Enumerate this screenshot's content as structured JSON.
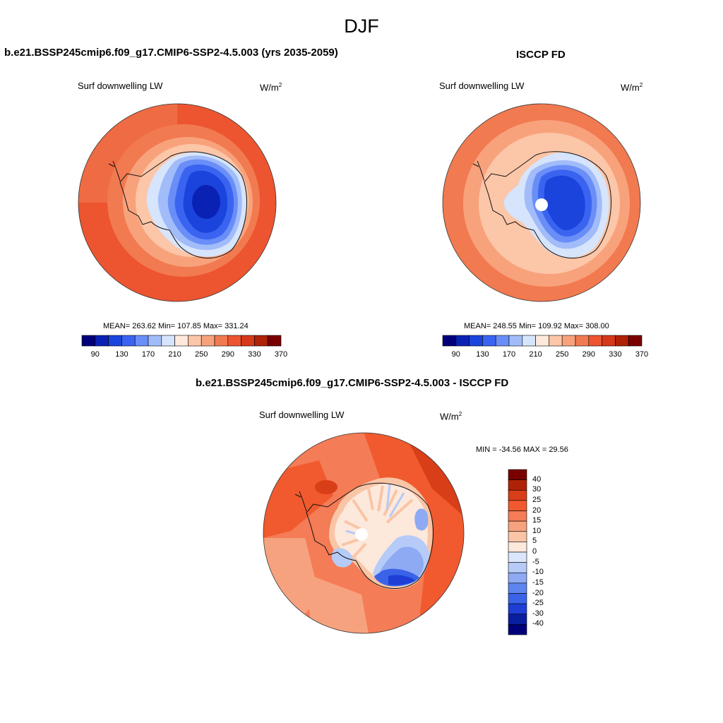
{
  "figure": {
    "title": "DJF"
  },
  "panels": [
    {
      "id": "model",
      "title": "b.e21.BSSP245cmip6.f09_g17.CMIP6-SSP2-4.5.003 (yrs 2035-2059)",
      "variable": "Surf downwelling LW",
      "units_base": "W/m",
      "units_exp": "2",
      "stats": "MEAN= 263.62  Min= 107.85  Max= 331.24",
      "colorbar": {
        "orientation": "horizontal",
        "levels_labeled": [
          "90",
          "130",
          "170",
          "210",
          "250",
          "290",
          "330",
          "370"
        ]
      }
    },
    {
      "id": "obs",
      "title": "ISCCP FD",
      "variable": "Surf downwelling LW",
      "units_base": "W/m",
      "units_exp": "2",
      "stats": "MEAN= 248.55  Min= 109.92  Max= 308.00",
      "colorbar": {
        "orientation": "horizontal",
        "levels_labeled": [
          "90",
          "130",
          "170",
          "210",
          "250",
          "290",
          "330",
          "370"
        ]
      }
    },
    {
      "id": "diff",
      "title": "b.e21.BSSP245cmip6.f09_g17.CMIP6-SSP2-4.5.003 - ISCCP FD",
      "variable": "Surf downwelling LW",
      "units_base": "W/m",
      "units_exp": "2",
      "stats": "MIN = -34.56 MAX =  29.56",
      "colorbar": {
        "orientation": "vertical",
        "levels_labeled": [
          "40",
          "30",
          "25",
          "20",
          "15",
          "10",
          "5",
          "0",
          "-5",
          "-10",
          "-15",
          "-20",
          "-25",
          "-30",
          "-40"
        ]
      }
    }
  ],
  "colors": {
    "horizontal_scale": [
      "#00007a",
      "#0a22b4",
      "#1a44dc",
      "#3a64f0",
      "#6a8ef8",
      "#a2bcfa",
      "#d6e4fc",
      "#ffe9dc",
      "#fcc6a8",
      "#f8a27c",
      "#f27a50",
      "#ec5530",
      "#d6381a",
      "#ae2208",
      "#7a0000"
    ],
    "vertical_scale_top_to_bottom": [
      "#7a0000",
      "#b02208",
      "#d83e18",
      "#f05a2e",
      "#f47c56",
      "#f7a27f",
      "#f9c5a6",
      "#fde8dc",
      "#dae6fb",
      "#b6cbf7",
      "#8daaf3",
      "#5e85ef",
      "#3a63e8",
      "#1d3fd6",
      "#0a1ea0",
      "#00007a"
    ],
    "land_outline": "#111111"
  }
}
